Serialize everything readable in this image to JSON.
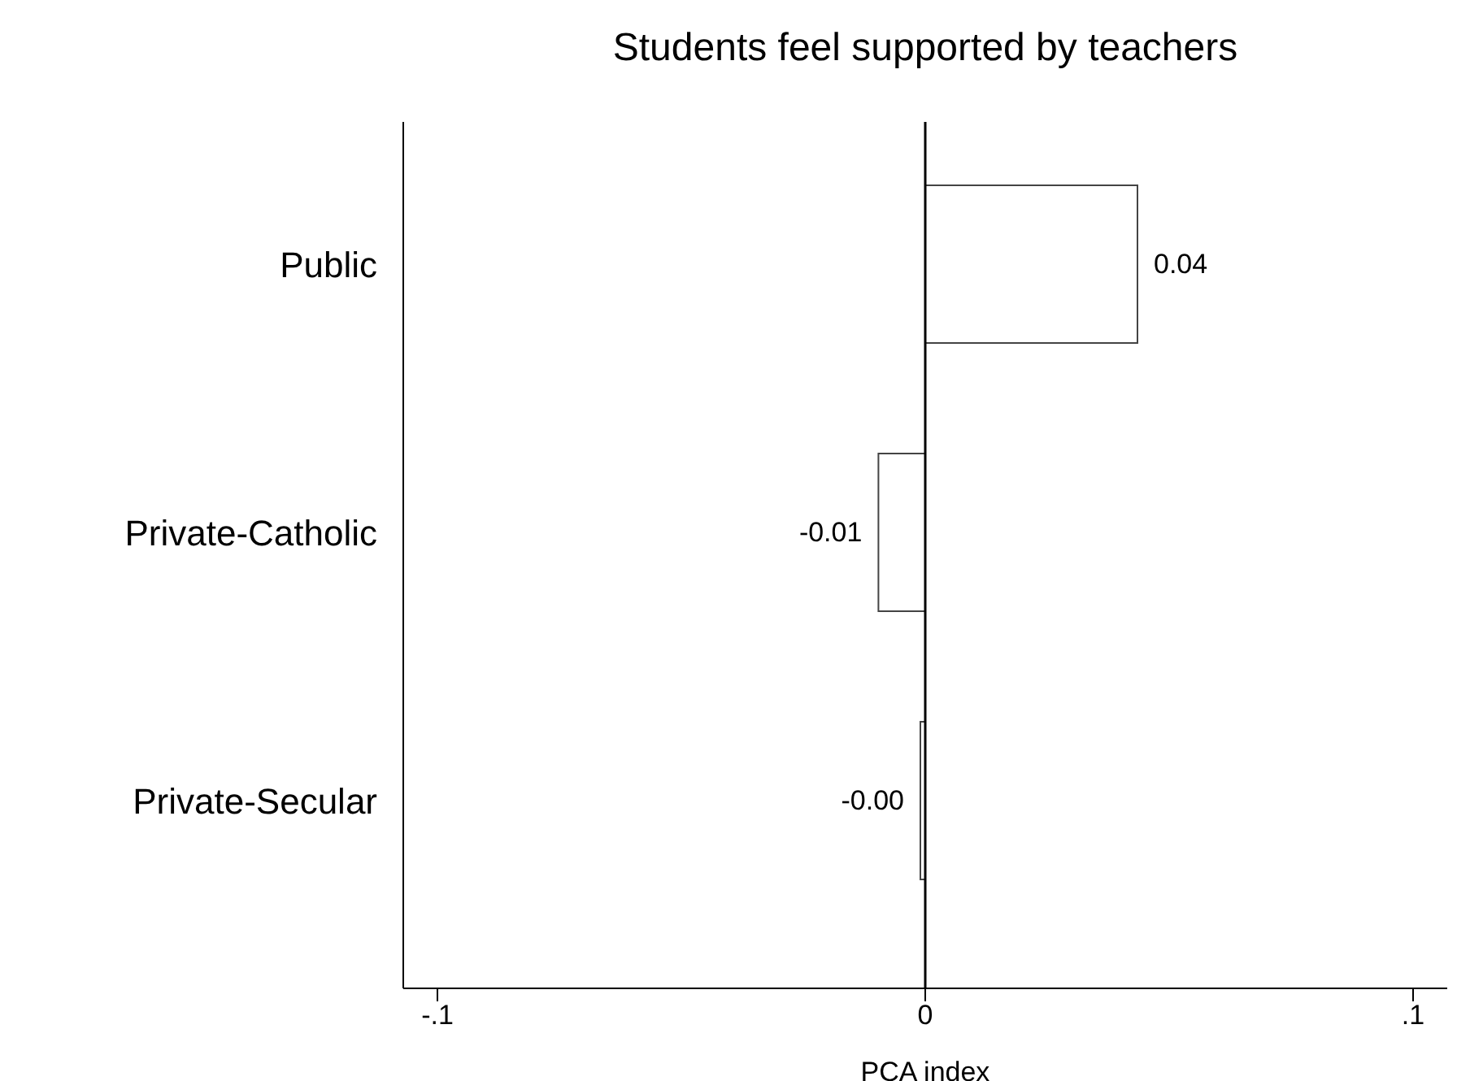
{
  "chart_data": {
    "type": "bar",
    "orientation": "horizontal",
    "title": "Students feel supported by teachers",
    "xlabel": "PCA index",
    "categories": [
      "Public",
      "Private-Catholic",
      "Private-Secular"
    ],
    "values": [
      0.0435,
      -0.0096,
      -0.001
    ],
    "value_labels": [
      "0.04",
      "-0.01",
      "-0.00"
    ],
    "color": "#ffffff",
    "xlim": [
      -0.107,
      0.107
    ],
    "xticks": [
      {
        "value": -0.1,
        "label": "-.1"
      },
      {
        "value": 0,
        "label": "0"
      },
      {
        "value": 0.1,
        "label": ".1"
      }
    ],
    "ref_lines": [
      {
        "axis": "x",
        "value": 0,
        "color": "#000000"
      }
    ],
    "grid": false,
    "legend": false
  }
}
